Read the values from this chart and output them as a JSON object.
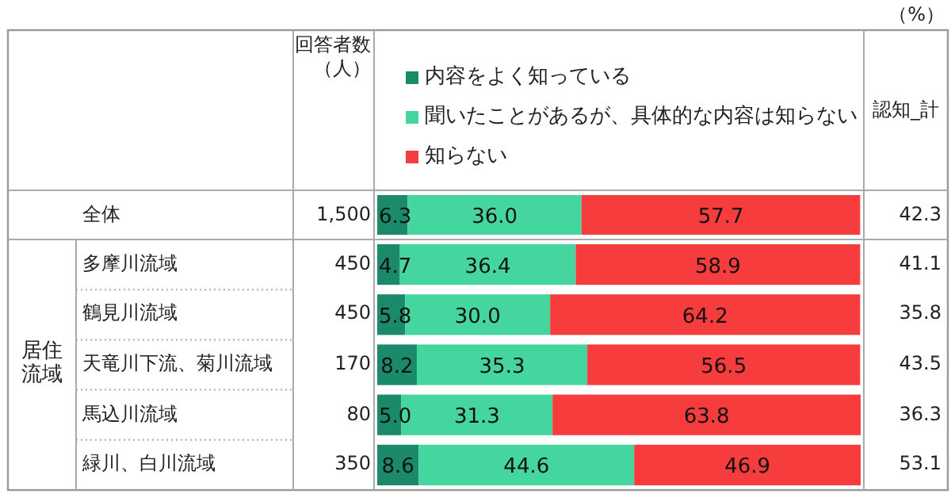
{
  "chart_data": {
    "type": "bar",
    "orientation": "horizontal",
    "stacked": true,
    "legend": "top",
    "tick_labels": "y",
    "categories": [
      "全体",
      "多摩川流域",
      "鶴見川流域",
      "天竜川下流、菊川流域",
      "馬込川流域",
      "緑川、白川流域"
    ],
    "series": [
      {
        "name": "内容をよく知っている",
        "color": "#1b8a6b",
        "values": [
          6.3,
          4.7,
          5.8,
          8.2,
          5.0,
          8.6
        ],
        "value_labels": [
          "6.3",
          "4.7",
          "5.8",
          "8.2",
          "5.0",
          "8.6"
        ]
      },
      {
        "name": "聞いたことがあるが、具体的な内容は知らない",
        "color": "#45d69f",
        "values": [
          36.0,
          36.4,
          30.0,
          35.3,
          31.3,
          44.6
        ],
        "value_labels": [
          "36.0",
          "36.4",
          "30.0",
          "35.3",
          "31.3",
          "44.6"
        ]
      },
      {
        "name": "知らない",
        "color": "#f63c3c",
        "values": [
          57.7,
          58.9,
          64.2,
          56.5,
          63.8,
          46.9
        ],
        "value_labels": [
          "57.7",
          "58.9",
          "64.2",
          "56.5",
          "63.8",
          "46.9"
        ]
      }
    ],
    "annotations": [
      "回答者数（人）",
      "（%）",
      "認知_計",
      "居住流域",
      "1,500",
      "450",
      "450",
      "170",
      "80",
      "350",
      "42.3",
      "41.1",
      "35.8",
      "43.5",
      "36.3",
      "53.1"
    ]
  }
}
